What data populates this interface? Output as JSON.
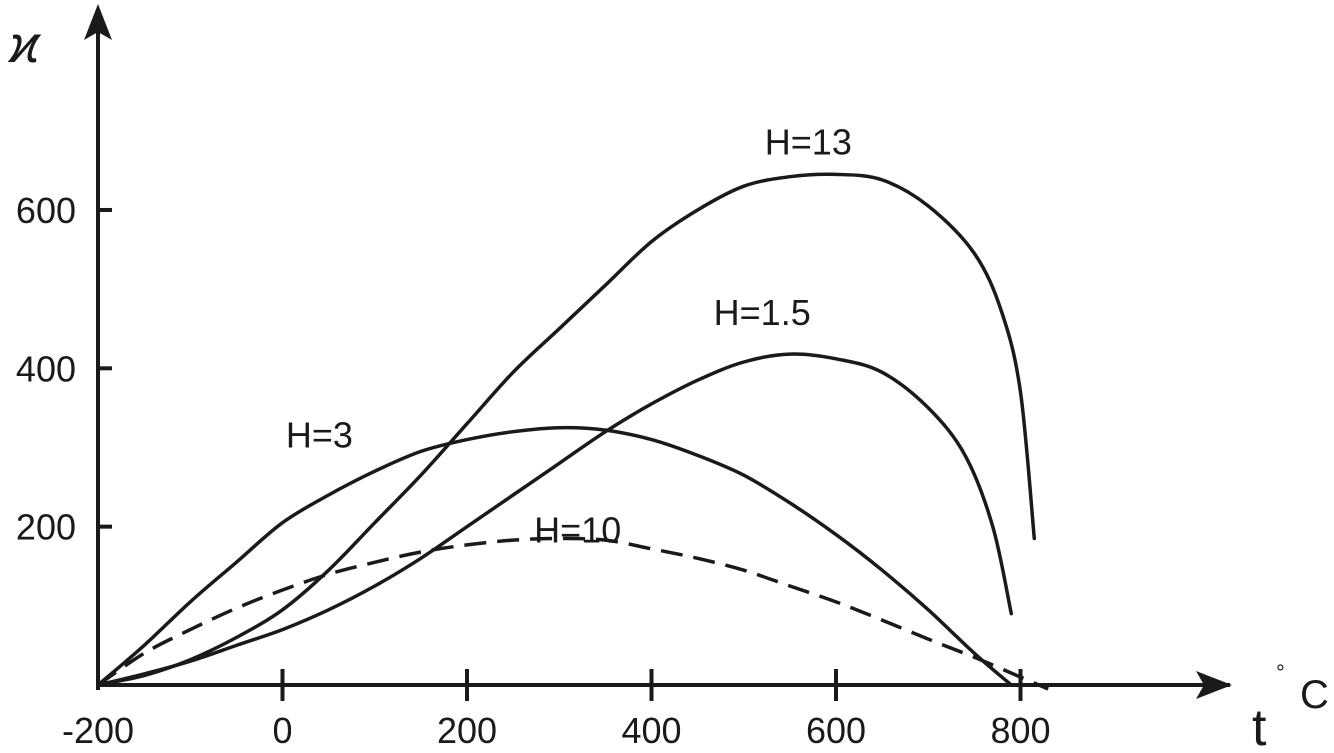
{
  "chart_data": {
    "type": "line",
    "ylabel": "ϰ",
    "xlabel": "t",
    "xlabel_unit": "C",
    "xlabel_degree_mark": "°",
    "xlim": [
      -200,
      900
    ],
    "ylim": [
      0,
      750
    ],
    "x_ticks": [
      {
        "value": -200,
        "label": "-200"
      },
      {
        "value": 0,
        "label": "0"
      },
      {
        "value": 200,
        "label": "200"
      },
      {
        "value": 400,
        "label": "400"
      },
      {
        "value": 600,
        "label": "600"
      },
      {
        "value": 800,
        "label": "800"
      }
    ],
    "y_ticks": [
      {
        "value": 200,
        "label": "200"
      },
      {
        "value": 400,
        "label": "400"
      },
      {
        "value": 600,
        "label": "600"
      }
    ],
    "grid": false,
    "series": [
      {
        "name": "H=13",
        "style": "solid",
        "label_at": [
          570,
          670
        ],
        "points": [
          [
            -200,
            0
          ],
          [
            -150,
            12
          ],
          [
            -100,
            32
          ],
          [
            -50,
            60
          ],
          [
            0,
            95
          ],
          [
            50,
            145
          ],
          [
            100,
            205
          ],
          [
            150,
            265
          ],
          [
            200,
            330
          ],
          [
            250,
            395
          ],
          [
            300,
            450
          ],
          [
            350,
            505
          ],
          [
            400,
            560
          ],
          [
            450,
            600
          ],
          [
            500,
            630
          ],
          [
            550,
            642
          ],
          [
            600,
            645
          ],
          [
            650,
            638
          ],
          [
            700,
            605
          ],
          [
            750,
            545
          ],
          [
            780,
            470
          ],
          [
            800,
            370
          ],
          [
            815,
            185
          ]
        ]
      },
      {
        "name": "H=1.5",
        "style": "solid",
        "label_at": [
          520,
          455
        ],
        "points": [
          [
            -200,
            0
          ],
          [
            -150,
            14
          ],
          [
            -100,
            30
          ],
          [
            -50,
            50
          ],
          [
            0,
            70
          ],
          [
            50,
            95
          ],
          [
            100,
            125
          ],
          [
            150,
            160
          ],
          [
            200,
            200
          ],
          [
            250,
            240
          ],
          [
            300,
            280
          ],
          [
            350,
            320
          ],
          [
            400,
            355
          ],
          [
            450,
            385
          ],
          [
            500,
            408
          ],
          [
            550,
            418
          ],
          [
            600,
            412
          ],
          [
            650,
            395
          ],
          [
            700,
            350
          ],
          [
            740,
            290
          ],
          [
            770,
            200
          ],
          [
            790,
            90
          ]
        ]
      },
      {
        "name": "H=3",
        "style": "solid",
        "label_at": [
          40,
          300
        ],
        "points": [
          [
            -200,
            0
          ],
          [
            -150,
            50
          ],
          [
            -100,
            105
          ],
          [
            -50,
            155
          ],
          [
            0,
            205
          ],
          [
            50,
            240
          ],
          [
            100,
            270
          ],
          [
            150,
            295
          ],
          [
            200,
            310
          ],
          [
            250,
            320
          ],
          [
            300,
            325
          ],
          [
            350,
            322
          ],
          [
            400,
            310
          ],
          [
            450,
            290
          ],
          [
            500,
            265
          ],
          [
            550,
            230
          ],
          [
            600,
            190
          ],
          [
            650,
            145
          ],
          [
            700,
            95
          ],
          [
            750,
            40
          ],
          [
            790,
            0
          ]
        ]
      },
      {
        "name": "H=10",
        "style": "dashed",
        "label_at": [
          320,
          180
        ],
        "points": [
          [
            -200,
            0
          ],
          [
            -150,
            40
          ],
          [
            -100,
            70
          ],
          [
            -50,
            97
          ],
          [
            0,
            120
          ],
          [
            50,
            140
          ],
          [
            100,
            155
          ],
          [
            150,
            168
          ],
          [
            200,
            177
          ],
          [
            250,
            183
          ],
          [
            300,
            185
          ],
          [
            350,
            183
          ],
          [
            400,
            172
          ],
          [
            450,
            160
          ],
          [
            500,
            145
          ],
          [
            550,
            125
          ],
          [
            600,
            105
          ],
          [
            650,
            82
          ],
          [
            700,
            58
          ],
          [
            750,
            35
          ],
          [
            800,
            10
          ],
          [
            830,
            -5
          ]
        ]
      }
    ]
  }
}
